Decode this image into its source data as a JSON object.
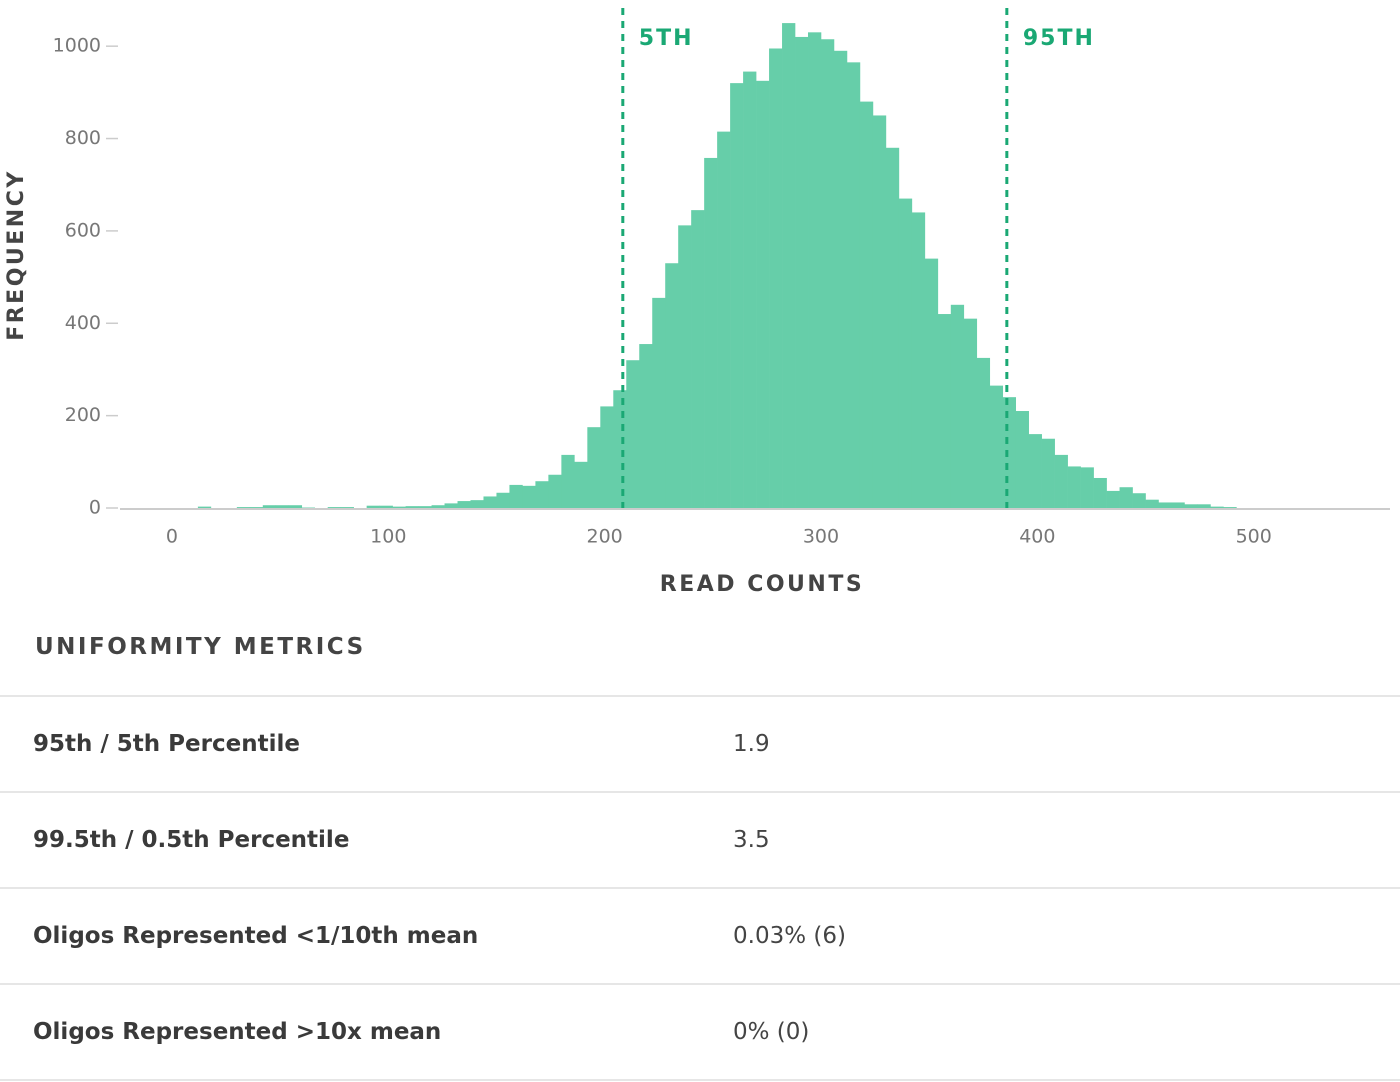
{
  "chart_data": {
    "type": "histogram",
    "x_label": "READ COUNTS",
    "y_label": "FREQUENCY",
    "bins": [
      0,
      6,
      12,
      18,
      24,
      30,
      36,
      42,
      48,
      54,
      60,
      66,
      72,
      78,
      84,
      90,
      96,
      102,
      108,
      114,
      120,
      126,
      132,
      138,
      144,
      150,
      156,
      162,
      168,
      174,
      180,
      186,
      192,
      198,
      204,
      210,
      216,
      222,
      228,
      234,
      240,
      246,
      252,
      258,
      264,
      270,
      276,
      282,
      288,
      294,
      300,
      306,
      312,
      318,
      324,
      330,
      336,
      342,
      348,
      354,
      360,
      366,
      372,
      378,
      384,
      390,
      396,
      402,
      408,
      414,
      420,
      426,
      432,
      438,
      444,
      450,
      456,
      462,
      468,
      474,
      480,
      486,
      492
    ],
    "values": [
      0,
      0,
      3,
      0,
      0,
      2,
      2,
      6,
      6,
      6,
      1,
      0,
      2,
      2,
      0,
      5,
      5,
      3,
      4,
      4,
      6,
      10,
      15,
      17,
      25,
      33,
      50,
      48,
      58,
      72,
      115,
      100,
      175,
      220,
      255,
      320,
      355,
      455,
      530,
      612,
      645,
      758,
      815,
      920,
      945,
      925,
      995,
      1050,
      1020,
      1030,
      1015,
      990,
      965,
      880,
      850,
      780,
      670,
      640,
      540,
      420,
      440,
      410,
      325,
      265,
      240,
      210,
      160,
      150,
      115,
      90,
      88,
      65,
      37,
      45,
      32,
      18,
      12,
      12,
      8,
      8,
      3,
      2
    ],
    "color": "#66cea9",
    "xlim": [
      -24,
      563
    ],
    "xticks": [
      0,
      100,
      200,
      300,
      400,
      500
    ],
    "ylim": [
      0,
      1100
    ],
    "yticks": [
      0,
      200,
      400,
      600,
      800,
      1000
    ],
    "annotations": [
      {
        "value": 208.4,
        "label": "5TH"
      },
      {
        "value": 385.9,
        "label": "95TH"
      }
    ],
    "annotation_color": "#1aa874"
  },
  "table": {
    "title": "UNIFORMITY METRICS",
    "rows": [
      [
        "95th / 5th Percentile",
        "1.9"
      ],
      [
        "99.5th / 0.5th Percentile",
        "3.5"
      ],
      [
        "Oligos Represented <1/10th mean",
        "0.03% (6)"
      ],
      [
        "Oligos Represented >10x mean",
        "0% (0)"
      ]
    ]
  }
}
